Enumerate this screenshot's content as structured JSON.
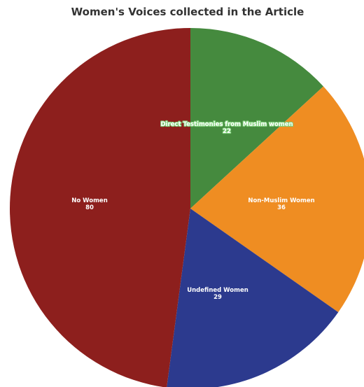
{
  "chart_data": {
    "type": "pie",
    "title": "Women's Voices collected in the Article",
    "slices": [
      {
        "label": "Direct Testimonies from Muslim women",
        "value": 22,
        "color": "#458a3e"
      },
      {
        "label": "Non-Muslim Women",
        "value": 36,
        "color": "#ef8d22"
      },
      {
        "label": "Undefined Women",
        "value": 29,
        "color": "#2c3a8e"
      },
      {
        "label": "No Women",
        "value": 80,
        "color": "#8d1f1d"
      }
    ]
  }
}
